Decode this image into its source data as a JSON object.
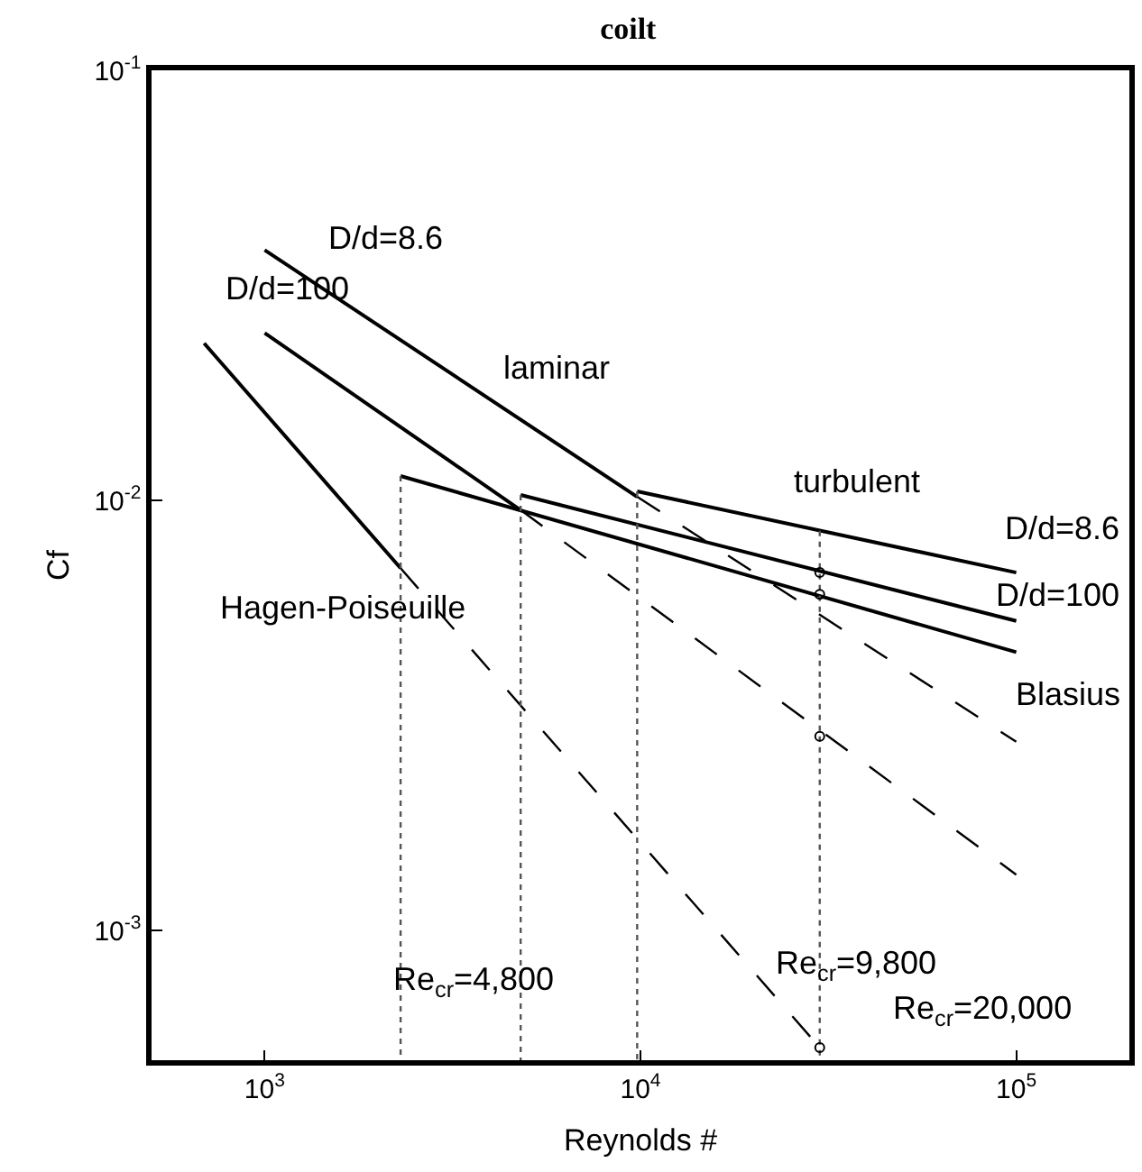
{
  "chart_data": {
    "type": "line",
    "title": "coilt",
    "xlabel": "Reynolds #",
    "ylabel": "Cf",
    "log": "xy",
    "xlim": [
      500,
      200000
    ],
    "ylim": [
      0.0005,
      0.1
    ],
    "xticks": [
      {
        "value": 1000,
        "label": "10$^{3}$"
      },
      {
        "value": 10000,
        "label": "10$^{4}$"
      },
      {
        "value": 100000,
        "label": "10$^{5}$"
      }
    ],
    "yticks": [
      {
        "value": 0.001,
        "label": "10$^{-3}$"
      },
      {
        "value": 0.01,
        "label": "10$^{-2}$"
      },
      {
        "value": 0.1,
        "label": "10$^{-1}$"
      }
    ],
    "series": [
      {
        "color": "#000000",
        "line_style": "solid",
        "x": [
          690,
          2300
        ],
        "values": [
          0.0232,
          0.00696
        ]
      },
      {
        "color": "#000000",
        "line_style": "dashed",
        "x": [
          2300,
          30000
        ],
        "values": [
          0.00696,
          0.000535
        ]
      },
      {
        "color": "#000000",
        "line_style": "solid",
        "x": [
          1000,
          4800
        ],
        "values": [
          0.0245,
          0.0095
        ]
      },
      {
        "color": "#000000",
        "line_style": "dashed",
        "x": [
          4800,
          100000
        ],
        "values": [
          0.0095,
          0.00135
        ]
      },
      {
        "color": "#000000",
        "line_style": "solid",
        "x": [
          1000,
          9800
        ],
        "values": [
          0.0382,
          0.0102
        ]
      },
      {
        "color": "#000000",
        "line_style": "dashed",
        "x": [
          9800,
          100000
        ],
        "values": [
          0.0102,
          0.00275
        ]
      },
      {
        "color": "#000000",
        "line_style": "solid",
        "x": [
          9800,
          100000
        ],
        "values": [
          0.0105,
          0.0068
        ]
      },
      {
        "color": "#000000",
        "line_style": "solid",
        "x": [
          4800,
          100000
        ],
        "values": [
          0.0103,
          0.00525
        ]
      },
      {
        "color": "#000000",
        "line_style": "solid",
        "x": [
          2300,
          100000
        ],
        "values": [
          0.0114,
          0.00444
        ]
      },
      {
        "color": "#555555",
        "line_style": "dotted",
        "x": [
          2300,
          2300
        ],
        "values": [
          0.0114,
          0.0005
        ]
      },
      {
        "color": "#555555",
        "line_style": "dotted",
        "x": [
          4800,
          4800
        ],
        "values": [
          0.0103,
          0.0005
        ]
      },
      {
        "color": "#555555",
        "line_style": "dotted",
        "x": [
          9800,
          9800
        ],
        "values": [
          0.0105,
          0.0005
        ]
      },
      {
        "color": "#555555",
        "line_style": "dotted",
        "x": [
          30000,
          30000
        ],
        "values": [
          0.0085,
          0.0005
        ]
      },
      {
        "type": "scatter",
        "marker": "circle",
        "color": "#000000",
        "x": [
          30000,
          30000,
          30000,
          30000
        ],
        "values": [
          0.0068,
          0.00605,
          0.00283,
          0.000535
        ]
      }
    ],
    "annotations": [
      "D/d=8.6",
      "D/d=100",
      "laminar",
      "Hagen-Poiseuille",
      "turbulent",
      "D/d=8.6",
      "D/d=100",
      "Blasius",
      "Re$_{cr}$=4,800",
      "Re$_{cr}$=9,800",
      "Re$_{cr}$=20,000"
    ]
  }
}
